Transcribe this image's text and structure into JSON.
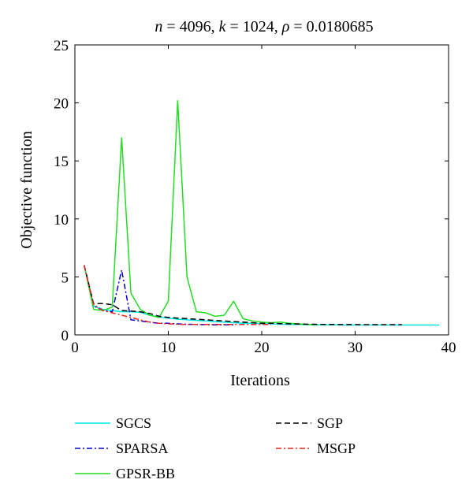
{
  "chart_data": {
    "type": "line",
    "title": "n = 4096, k = 1024, ρ = 0.0180685",
    "title_parts": {
      "n_sym": "n",
      "n_val": " = 4096, ",
      "k_sym": "k",
      "k_val": " = 1024, ",
      "rho_sym": "ρ",
      "rho_val": " = 0.0180685"
    },
    "xlabel": "Iterations",
    "ylabel": "Objective function",
    "xlim": [
      0,
      40
    ],
    "ylim": [
      0,
      25
    ],
    "xticks": [
      "0",
      "10",
      "20",
      "30",
      "40"
    ],
    "yticks": [
      "0",
      "5",
      "10",
      "15",
      "20",
      "25"
    ],
    "grid": false,
    "legend_position": "bottom",
    "series": [
      {
        "name": "SGCS",
        "color": "#00e5e5",
        "dash": "solid",
        "x": [
          1,
          2,
          3,
          4,
          5,
          6,
          7,
          8,
          9,
          10,
          11,
          12,
          13,
          14,
          15,
          16,
          17,
          18,
          19,
          20,
          21,
          22,
          23,
          24,
          25,
          26,
          27,
          28,
          29,
          30,
          31,
          32,
          33,
          34,
          35,
          36,
          37,
          38,
          39
        ],
        "y": [
          6.0,
          2.5,
          2.2,
          2.1,
          2.0,
          2.0,
          1.95,
          1.7,
          1.55,
          1.45,
          1.35,
          1.3,
          1.25,
          1.2,
          1.15,
          1.1,
          1.05,
          1.0,
          1.0,
          0.95,
          0.95,
          0.92,
          0.9,
          0.9,
          0.88,
          0.87,
          0.86,
          0.86,
          0.85,
          0.85,
          0.85,
          0.85,
          0.85,
          0.85,
          0.85,
          0.85,
          0.85,
          0.85,
          0.85
        ]
      },
      {
        "name": "SPARSA",
        "color": "#0000cc",
        "dash": "dashdot",
        "x": [
          1,
          2,
          3,
          4,
          5,
          6,
          7,
          8,
          9,
          10,
          11,
          12,
          13,
          14,
          15,
          16,
          17
        ],
        "y": [
          6.0,
          2.5,
          2.1,
          2.0,
          5.6,
          1.3,
          1.2,
          1.1,
          1.0,
          1.0,
          0.95,
          0.92,
          0.9,
          0.88,
          0.87,
          0.86,
          0.86
        ]
      },
      {
        "name": "GPSR-BB",
        "color": "#22dd22",
        "dash": "solid",
        "x": [
          1,
          2,
          3,
          4,
          5,
          6,
          7,
          8,
          9,
          10,
          11,
          12,
          13,
          14,
          15,
          16,
          17,
          18,
          19,
          20,
          21,
          22,
          23,
          24,
          25,
          26
        ],
        "y": [
          6.0,
          2.2,
          2.1,
          2.4,
          17.0,
          3.6,
          2.2,
          1.7,
          1.5,
          2.9,
          20.2,
          5.0,
          2.0,
          1.9,
          1.6,
          1.7,
          2.9,
          1.4,
          1.2,
          1.1,
          1.05,
          1.1,
          1.0,
          0.95,
          0.9,
          0.88
        ]
      },
      {
        "name": "SGP",
        "color": "#000000",
        "dash": "dashed",
        "x": [
          1,
          2,
          3,
          4,
          5,
          6,
          7,
          8,
          9,
          10,
          11,
          12,
          13,
          14,
          15,
          16,
          17,
          18,
          19,
          20,
          21,
          22,
          23,
          24,
          25,
          26,
          27,
          28,
          29,
          30,
          31,
          32,
          33,
          34,
          35
        ],
        "y": [
          6.0,
          2.7,
          2.7,
          2.6,
          2.1,
          2.05,
          2.0,
          1.85,
          1.6,
          1.5,
          1.45,
          1.4,
          1.35,
          1.3,
          1.25,
          1.2,
          1.15,
          1.1,
          1.05,
          1.0,
          1.0,
          0.97,
          0.95,
          0.93,
          0.92,
          0.91,
          0.9,
          0.9,
          0.89,
          0.89,
          0.88,
          0.88,
          0.88,
          0.88,
          0.88
        ]
      },
      {
        "name": "MSGP",
        "color": "#ee2222",
        "dash": "dashdot",
        "x": [
          1,
          2,
          3,
          4,
          5,
          6,
          7,
          8,
          9,
          10,
          11,
          12,
          13,
          14,
          15,
          16,
          17,
          18,
          19,
          20,
          21
        ],
        "y": [
          6.0,
          2.6,
          2.1,
          1.9,
          1.7,
          1.5,
          1.3,
          1.1,
          1.0,
          0.95,
          0.92,
          0.9,
          0.9,
          0.9,
          0.9,
          0.9,
          0.9,
          0.9,
          0.9,
          0.9,
          0.9
        ]
      }
    ]
  }
}
